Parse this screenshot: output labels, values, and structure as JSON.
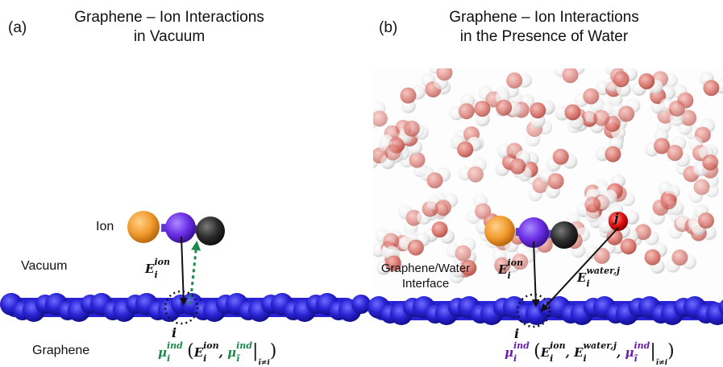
{
  "panel_a": {
    "label": "(a)",
    "title_line1": "Graphene – Ion Interactions",
    "title_line2": "in Vacuum",
    "ion_label": "Ion",
    "vacuum_label": "Vacuum",
    "graphene_label": "Graphene",
    "atom_index": "i",
    "field_symbol": "E",
    "field_sup": "ion",
    "field_sub": "i",
    "dipole_symbol": "μ",
    "dipole_sup": "ind",
    "dipole_sub": "i",
    "dipole_other_sub": "ĩ",
    "dipole_condition": "ĩ≠i"
  },
  "panel_b": {
    "label": "(b)",
    "title_line1": "Graphene – Ion Interactions",
    "title_line2": "in the Presence of Water",
    "interface_line1": "Graphene/Water",
    "interface_line2": "Interface",
    "atom_index": "i",
    "water_index": "j",
    "field_symbol": "E",
    "field_sup": "ion",
    "field_sub": "i",
    "water_field_sup": "water,j",
    "dipole_symbol": "μ",
    "dipole_sup": "ind",
    "dipole_sub": "i",
    "dipole_other_sub": "ĩ",
    "dipole_condition": "ĩ≠i"
  },
  "colors": {
    "graphene": "#2a23d6",
    "ion_orange": "#f29a2e",
    "ion_purple": "#6b2de6",
    "ion_black": "#2b2b2b",
    "water_oxygen": "#d9726a",
    "water_hydrogen": "#f2f2f2",
    "highlight_oxygen": "#e01010",
    "green_arrow": "#1d8a4c",
    "purple_text": "#6a1fa8"
  }
}
